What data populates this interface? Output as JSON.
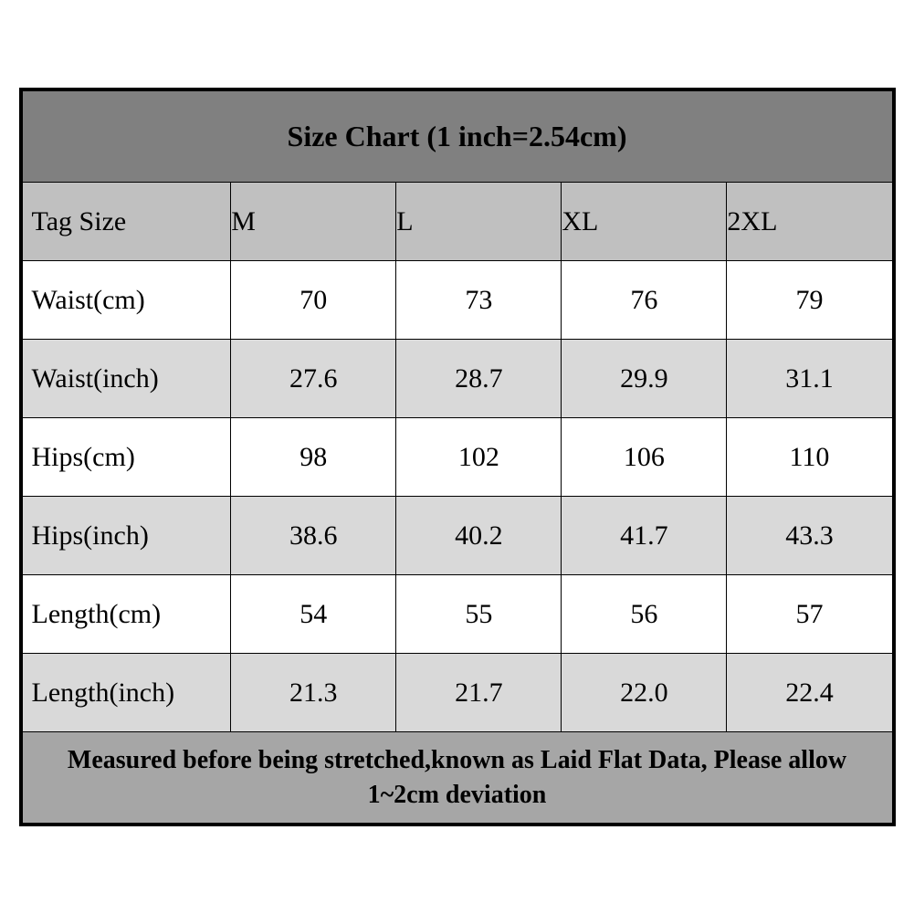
{
  "chart": {
    "type": "table",
    "title": "Size Chart (1 inch=2.54cm)",
    "footer": "Measured before being stretched,known as Laid Flat Data, Please allow 1~2cm deviation",
    "columns": [
      "Tag Size",
      "M",
      "L",
      "XL",
      "2XL"
    ],
    "rows": [
      {
        "label": "Waist(cm)",
        "values": [
          "70",
          "73",
          "76",
          "79"
        ],
        "bg": "white"
      },
      {
        "label": "Waist(inch)",
        "values": [
          "27.6",
          "28.7",
          "29.9",
          "31.1"
        ],
        "bg": "grey"
      },
      {
        "label": "Hips(cm)",
        "values": [
          "98",
          "102",
          "106",
          "110"
        ],
        "bg": "white"
      },
      {
        "label": "Hips(inch)",
        "values": [
          "38.6",
          "40.2",
          "41.7",
          "43.3"
        ],
        "bg": "grey"
      },
      {
        "label": "Length(cm)",
        "values": [
          "54",
          "55",
          "56",
          "57"
        ],
        "bg": "white"
      },
      {
        "label": "Length(inch)",
        "values": [
          "21.3",
          "21.7",
          "22.0",
          "22.4"
        ],
        "bg": "grey"
      }
    ],
    "colors": {
      "title_bg": "#808080",
      "header_bg": "#c0c0c0",
      "row_white": "#ffffff",
      "row_grey": "#d9d9d9",
      "footer_bg": "#a6a6a6",
      "border": "#000000",
      "text": "#000000"
    },
    "font_family": "Times New Roman",
    "title_fontsize": 32,
    "cell_fontsize": 30,
    "footer_fontsize": 28,
    "col_widths_pct": [
      24,
      19,
      19,
      19,
      19
    ]
  }
}
